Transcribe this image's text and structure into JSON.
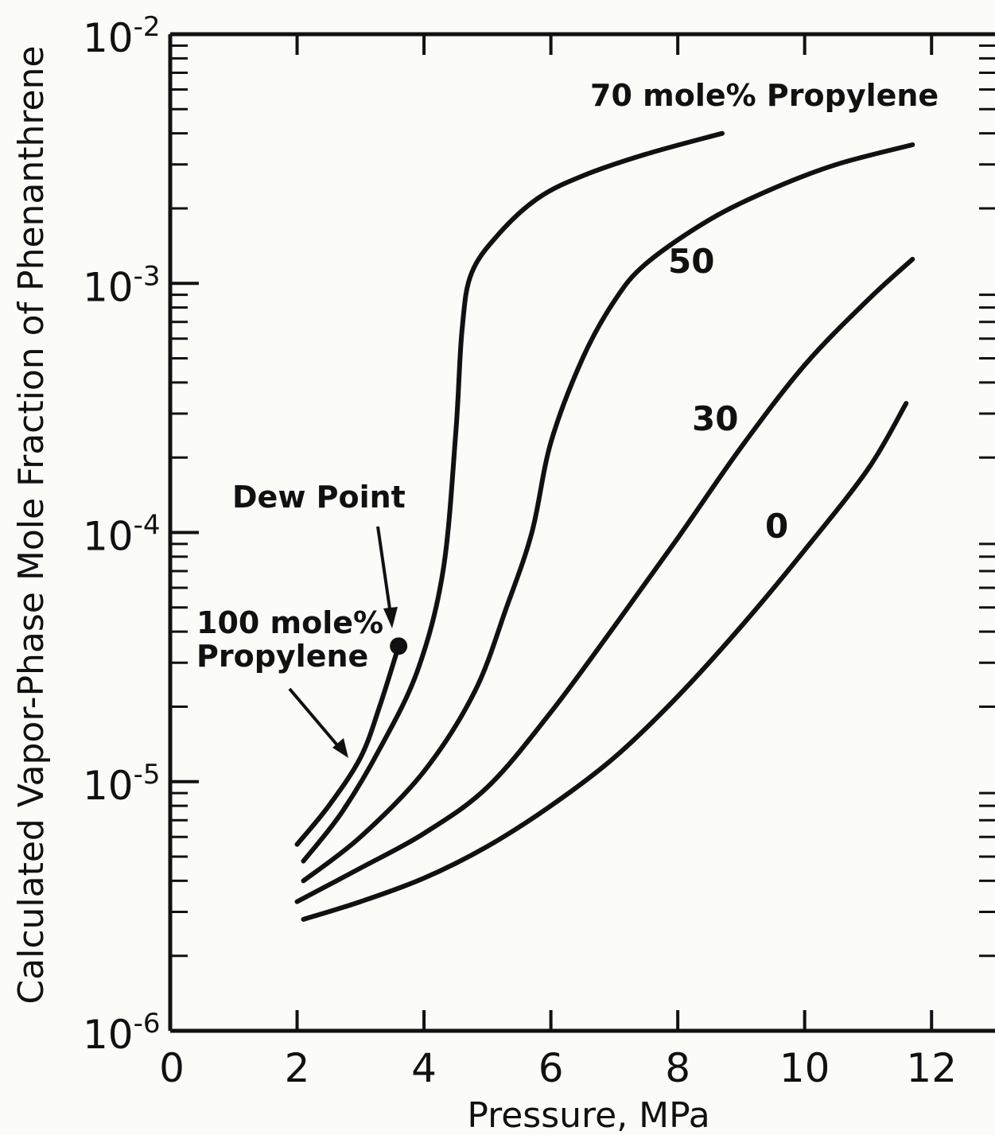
{
  "chart_data": {
    "type": "line",
    "title": "",
    "xlabel": "Pressure, MPa",
    "ylabel": "Calculated Vapor-Phase Mole Fraction of Phenanthrene",
    "xlim": [
      0,
      13
    ],
    "ylim": [
      1e-06,
      0.01
    ],
    "yscale": "log",
    "grid": false,
    "x_ticks": [
      0,
      2,
      4,
      6,
      8,
      10,
      12
    ],
    "x_tick_labels": [
      "0",
      "2",
      "4",
      "6",
      "8",
      "10",
      "12"
    ],
    "y_ticks": [
      {
        "value": 1e-06,
        "base": "10",
        "exp": "-6"
      },
      {
        "value": 1e-05,
        "base": "10",
        "exp": "-5"
      },
      {
        "value": 0.0001,
        "base": "10",
        "exp": "-4"
      },
      {
        "value": 0.001,
        "base": "10",
        "exp": "-3"
      },
      {
        "value": 0.01,
        "base": "10",
        "exp": "-2"
      }
    ],
    "series": [
      {
        "key": "s100",
        "x": [
          2.0,
          2.5,
          3.0,
          3.3,
          3.6
        ],
        "y": [
          5.6e-06,
          8e-06,
          1.25e-05,
          2e-05,
          3.5e-05
        ]
      },
      {
        "key": "s70",
        "x": [
          2.1,
          2.7,
          3.3,
          3.9,
          4.3,
          4.5,
          4.6,
          4.75,
          5.2,
          5.8,
          6.5,
          7.5,
          8.7
        ],
        "y": [
          4.8e-06,
          7.5e-06,
          1.35e-05,
          2.8e-05,
          7e-05,
          0.00025,
          0.00065,
          0.0011,
          0.0016,
          0.0022,
          0.0027,
          0.0033,
          0.004
        ]
      },
      {
        "key": "s50",
        "x": [
          2.1,
          3.0,
          4.0,
          4.8,
          5.3,
          5.7,
          6.0,
          6.5,
          7.0,
          7.5,
          8.5,
          9.5,
          10.5,
          11.7
        ],
        "y": [
          4e-06,
          6e-06,
          1.1e-05,
          2.3e-05,
          5e-05,
          0.0001,
          0.00023,
          0.0005,
          0.00085,
          0.0012,
          0.0018,
          0.0024,
          0.003,
          0.0036
        ]
      },
      {
        "key": "s30",
        "x": [
          2.0,
          3.0,
          4.0,
          5.0,
          6.0,
          7.0,
          8.0,
          9.0,
          10.0,
          11.0,
          11.7
        ],
        "y": [
          3.3e-06,
          4.5e-06,
          6.2e-06,
          9.5e-06,
          1.9e-05,
          4.2e-05,
          9.5e-05,
          0.00022,
          0.00047,
          0.00086,
          0.00125
        ]
      },
      {
        "key": "s0",
        "x": [
          2.1,
          3.0,
          4.0,
          5.0,
          6.0,
          7.0,
          8.0,
          9.0,
          10.0,
          11.0,
          11.6
        ],
        "y": [
          2.8e-06,
          3.3e-06,
          4.1e-06,
          5.5e-06,
          8e-06,
          1.25e-05,
          2.2e-05,
          4.2e-05,
          8.5e-05,
          0.00018,
          0.00033
        ]
      }
    ],
    "dew_point": {
      "x": 3.6,
      "y": 3.5e-05
    },
    "annotations": {
      "label_70": "70 mole% Propylene",
      "label_50": "50",
      "label_30": "30",
      "label_0": "0",
      "dew_point": "Dew Point",
      "label_100_line1": "100 mole%",
      "label_100_line2": "Propylene"
    }
  }
}
